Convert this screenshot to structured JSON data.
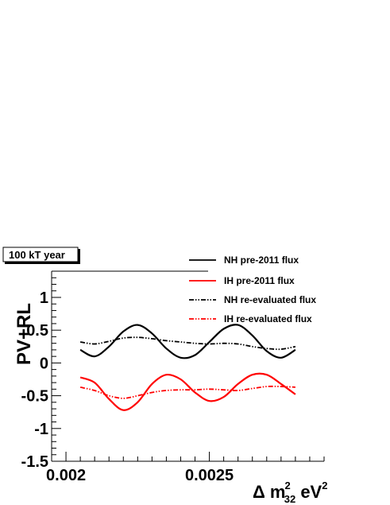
{
  "chart_data": {
    "type": "line",
    "title": "",
    "badge": "100 kT year",
    "ylabel": "PV+RL",
    "xlabel": {
      "prefix": "Δ m",
      "sup": "2",
      "sub": "32",
      "suffix": " eV",
      "sup2": "2"
    },
    "xlim": [
      0.00195,
      0.0029
    ],
    "ylim": [
      -1.5,
      1.4
    ],
    "x_ticks": [
      0.002,
      0.0025
    ],
    "x_tick_labels": [
      "0.002",
      "0.0025"
    ],
    "y_ticks": [
      1,
      0.5,
      0,
      -0.5,
      -1,
      -1.5
    ],
    "y_tick_labels": [
      "1",
      "0.5",
      "0",
      "-0.5",
      "-1",
      "-1.5"
    ],
    "grid": false,
    "legend_position": "top-right",
    "series": [
      {
        "name": "NH pre-2011 flux",
        "color": "#000000",
        "style": "solid",
        "x": [
          0.00205,
          0.0021,
          0.00215,
          0.0022,
          0.00225,
          0.0023,
          0.00235,
          0.0024,
          0.00245,
          0.0025,
          0.00255,
          0.0026,
          0.00265,
          0.0027,
          0.00275,
          0.0028
        ],
        "y": [
          0.2,
          0.1,
          0.25,
          0.48,
          0.58,
          0.45,
          0.22,
          0.08,
          0.12,
          0.32,
          0.52,
          0.58,
          0.42,
          0.18,
          0.08,
          0.2
        ]
      },
      {
        "name": "IH pre-2011 flux",
        "color": "#ff0000",
        "style": "solid",
        "x": [
          0.00205,
          0.0021,
          0.00215,
          0.0022,
          0.00225,
          0.0023,
          0.00235,
          0.0024,
          0.00245,
          0.0025,
          0.00255,
          0.0026,
          0.00265,
          0.0027,
          0.00275,
          0.0028
        ],
        "y": [
          -0.22,
          -0.3,
          -0.55,
          -0.72,
          -0.6,
          -0.32,
          -0.18,
          -0.25,
          -0.45,
          -0.58,
          -0.52,
          -0.32,
          -0.18,
          -0.18,
          -0.32,
          -0.48
        ]
      },
      {
        "name": "NH re-evaluated flux",
        "color": "#000000",
        "style": "dashdot",
        "x": [
          0.00205,
          0.0021,
          0.00215,
          0.0022,
          0.00225,
          0.0023,
          0.00235,
          0.0024,
          0.00245,
          0.0025,
          0.00255,
          0.0026,
          0.00265,
          0.0027,
          0.00275,
          0.0028
        ],
        "y": [
          0.32,
          0.29,
          0.33,
          0.38,
          0.39,
          0.37,
          0.34,
          0.32,
          0.3,
          0.29,
          0.3,
          0.29,
          0.25,
          0.22,
          0.21,
          0.25
        ]
      },
      {
        "name": "IH re-evaluated flux",
        "color": "#ff0000",
        "style": "dashdot",
        "x": [
          0.00205,
          0.0021,
          0.00215,
          0.0022,
          0.00225,
          0.0023,
          0.00235,
          0.0024,
          0.00245,
          0.0025,
          0.00255,
          0.0026,
          0.00265,
          0.0027,
          0.00275,
          0.0028
        ],
        "y": [
          -0.37,
          -0.42,
          -0.5,
          -0.54,
          -0.5,
          -0.45,
          -0.42,
          -0.41,
          -0.41,
          -0.4,
          -0.41,
          -0.42,
          -0.39,
          -0.36,
          -0.36,
          -0.37
        ]
      }
    ]
  }
}
